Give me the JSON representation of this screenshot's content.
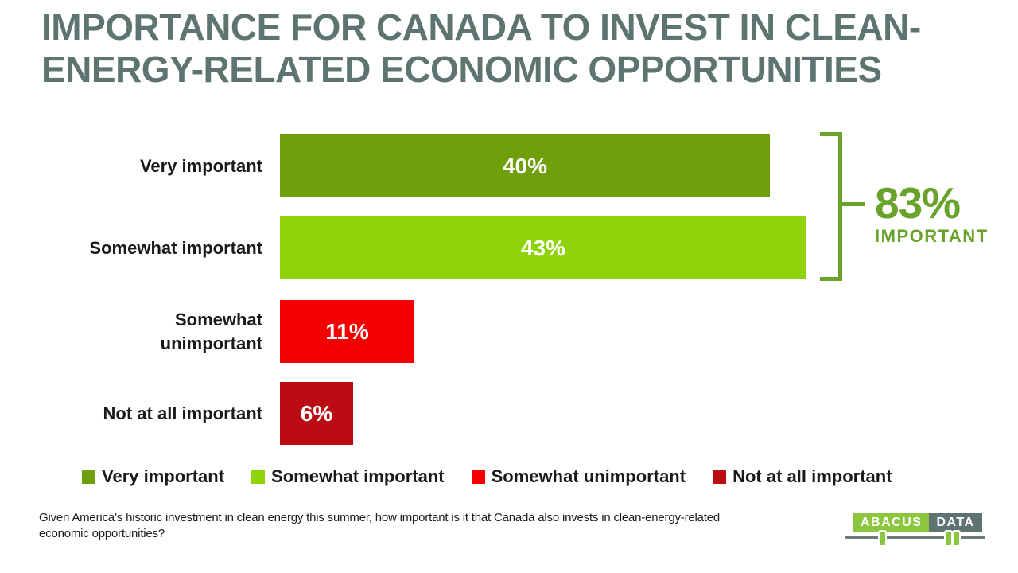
{
  "title": {
    "line1": "IMPORTANCE FOR CANADA TO INVEST IN CLEAN-",
    "line2": "ENERGY-RELATED ECONOMIC OPPORTUNITIES",
    "color": "#5E7470",
    "full_text": "IMPORTANCE FOR CANADA TO INVEST IN CLEAN-ENERGY-RELATED ECONOMIC OPPORTUNITIES"
  },
  "chart_data": {
    "type": "bar",
    "orientation": "horizontal",
    "categories": [
      "Very important",
      "Somewhat important",
      "Somewhat unimportant",
      "Not at all important"
    ],
    "values": [
      40,
      43,
      11,
      6
    ],
    "value_labels": [
      "40%",
      "43%",
      "11%",
      "6%"
    ],
    "bar_colors": [
      "#6FA00C",
      "#8FD40A",
      "#F40000",
      "#BA0C12"
    ],
    "value_label_color": "#FFFFFF",
    "xlim": [
      0,
      43
    ],
    "grid": false,
    "annotation": {
      "value": "83%",
      "label": "IMPORTANT",
      "color": "#69A32B",
      "grouped_categories": [
        "Very important",
        "Somewhat important"
      ]
    }
  },
  "legend": {
    "position": "bottom",
    "items": [
      {
        "label": "Very important",
        "color": "#6FA00C"
      },
      {
        "label": "Somewhat important",
        "color": "#8FD40A"
      },
      {
        "label": "Somewhat unimportant",
        "color": "#F40000"
      },
      {
        "label": "Not at all important",
        "color": "#BA0C12"
      }
    ]
  },
  "footnote": "Given America’s historic investment in clean energy this summer, how important is it that Canada also invests in clean-energy-related economic opportunities?",
  "logo": {
    "part1": "ABACUS",
    "part2": "DATA",
    "part1_bg": "#8CC63E",
    "part2_bg": "#5E7470"
  }
}
